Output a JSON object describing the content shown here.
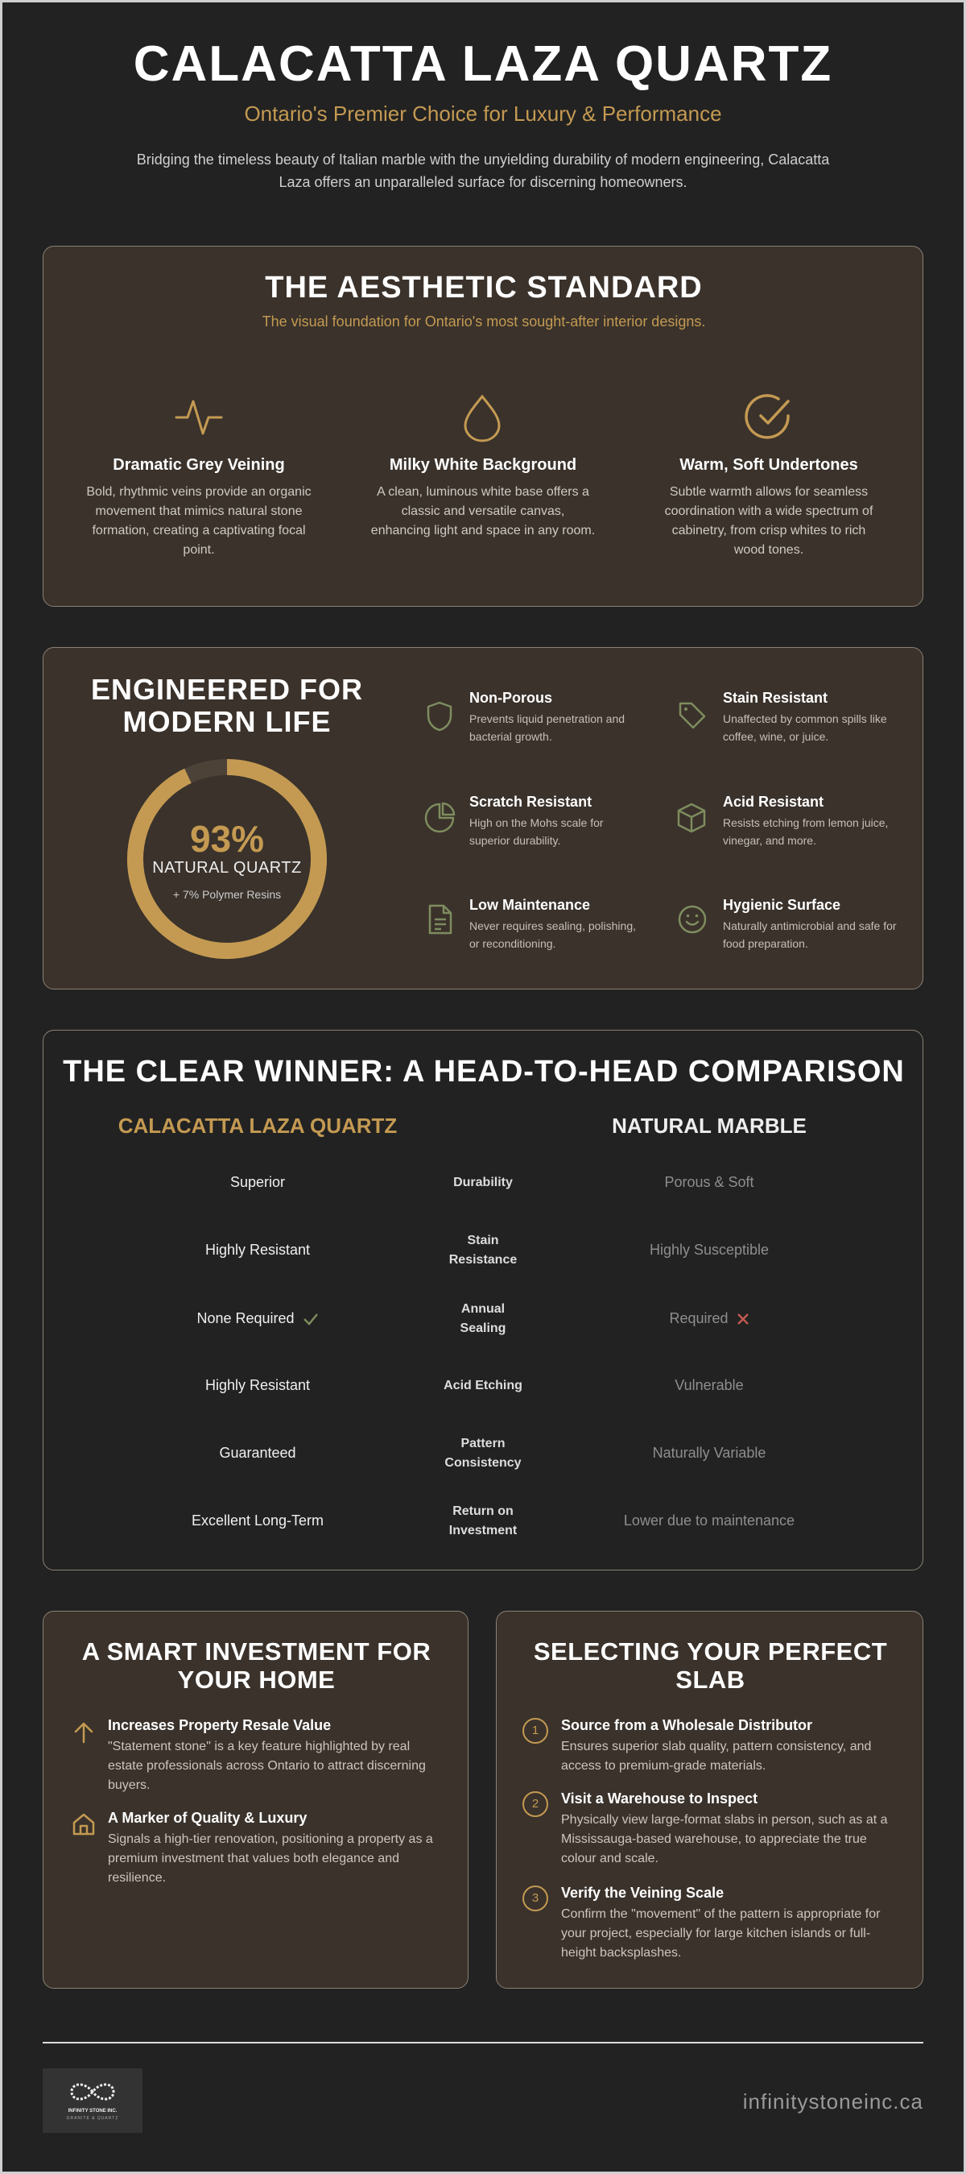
{
  "header": {
    "title": "CALACATTA LAZA QUARTZ",
    "subtitle": "Ontario's Premier Choice for Luxury & Performance",
    "intro": "Bridging the timeless beauty of Italian marble with the unyielding durability of modern engineering, Calacatta Laza offers an unparalleled surface for discerning homeowners."
  },
  "aesthetic": {
    "title": "THE AESTHETIC STANDARD",
    "subtitle": "The visual foundation for Ontario's most sought-after interior designs.",
    "features": [
      {
        "title": "Dramatic Grey Veining",
        "text": "Bold, rhythmic veins provide an organic movement that mimics natural stone formation, creating a captivating focal point."
      },
      {
        "title": "Milky White Background",
        "text": "A clean, luminous white base offers a classic and versatile canvas, enhancing light and space in any room."
      },
      {
        "title": "Warm, Soft Undertones",
        "text": "Subtle warmth allows for seamless coordination with a wide spectrum of cabinetry, from crisp whites to rich wood tones."
      }
    ]
  },
  "engineered": {
    "title": "ENGINEERED FOR MODERN LIFE",
    "donut": {
      "value": 93,
      "label": "93%",
      "caption": "NATURAL QUARTZ",
      "note": "+ 7% Polymer Resins"
    },
    "features": [
      {
        "title": "Non-Porous",
        "text": "Prevents liquid penetration and bacterial growth."
      },
      {
        "title": "Stain Resistant",
        "text": "Unaffected by common spills like coffee, wine, or juice."
      },
      {
        "title": "Scratch Resistant",
        "text": "High on the Mohs scale for superior durability."
      },
      {
        "title": "Acid Resistant",
        "text": "Resists etching from lemon juice, vinegar, and more."
      },
      {
        "title": "Low Maintenance",
        "text": "Never requires sealing, polishing, or reconditioning."
      },
      {
        "title": "Hygienic Surface",
        "text": "Naturally antimicrobial and safe for food preparation."
      }
    ]
  },
  "comparison": {
    "title": "THE CLEAR WINNER: A HEAD-TO-HEAD COMPARISON",
    "columns": [
      "CALACATTA LAZA QUARTZ",
      "NATURAL MARBLE"
    ],
    "rows": [
      {
        "quartz": "Superior",
        "criterion": "Durability",
        "marble": "Porous & Soft"
      },
      {
        "quartz": "Highly Resistant",
        "criterion": "Stain Resistance",
        "marble": "Highly Susceptible"
      },
      {
        "quartz": "None Required",
        "criterion": "Annual Sealing",
        "marble": "Required"
      },
      {
        "quartz": "Highly Resistant",
        "criterion": "Acid Etching",
        "marble": "Vulnerable"
      },
      {
        "quartz": "Guaranteed",
        "criterion": "Pattern Consistency",
        "marble": "Naturally Variable"
      },
      {
        "quartz": "Excellent Long-Term",
        "criterion": "Return on Investment",
        "marble": "Lower due to maintenance"
      }
    ]
  },
  "investment": {
    "title": "A SMART INVESTMENT FOR YOUR HOME",
    "items": [
      {
        "title": "Increases Property Resale Value",
        "text": "\"Statement stone\" is a key feature highlighted by real estate professionals across Ontario to attract discerning buyers."
      },
      {
        "title": "A Marker of Quality & Luxury",
        "text": "Signals a high-tier renovation, positioning a property as a premium investment that values both elegance and resilience."
      }
    ]
  },
  "selection": {
    "title": "SELECTING YOUR PERFECT SLAB",
    "steps": [
      {
        "number": 1,
        "title": "Source from a Wholesale Distributor",
        "text": "Ensures superior slab quality, pattern consistency, and access to premium-grade materials."
      },
      {
        "number": 2,
        "title": "Visit a Warehouse to Inspect",
        "text": "Physically view large-format slabs in person, such as at a Mississauga-based warehouse, to appreciate the true colour and scale."
      },
      {
        "number": 3,
        "title": "Verify the Veining Scale",
        "text": "Confirm the \"movement\" of the pattern is appropriate for your project, especially for large kitchen islands or full-height backsplashes."
      }
    ]
  },
  "footer": {
    "logo_name": "INFINITY STONE INC.",
    "logo_tagline": "GRANITE & QUARTZ",
    "website": "infinitystoneinc.ca"
  }
}
